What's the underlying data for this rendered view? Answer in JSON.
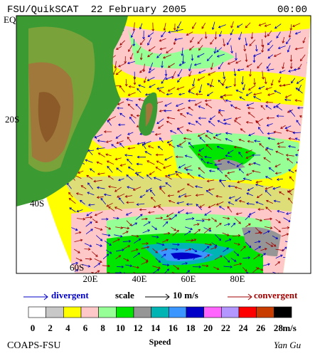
{
  "header": {
    "title": "FSU/QuikSCAT  22 February 2005",
    "time": "00:00"
  },
  "axes": {
    "lat_labels": [
      "EQ",
      "20S",
      "40S",
      "60S"
    ],
    "lon_labels": [
      "20E",
      "40E",
      "60E",
      "80E"
    ]
  },
  "legend": {
    "divergent": "divergent",
    "scale": "scale",
    "scale_value": "10 m/s",
    "convergent": "convergent"
  },
  "colorbar": {
    "title": "Speed",
    "unit": "m/s",
    "ticks": [
      0,
      2,
      4,
      6,
      8,
      10,
      12,
      14,
      16,
      18,
      20,
      22,
      24,
      26,
      28
    ],
    "colors": [
      "#ffffff",
      "#c8c8c8",
      "#ffff00",
      "#ffc8c8",
      "#96ff96",
      "#00e600",
      "#969696",
      "#00b4b4",
      "#3c96ff",
      "#0000c8",
      "#ff64ff",
      "#b496ff",
      "#ff0000",
      "#c83c00",
      "#000000"
    ]
  },
  "footer": {
    "left": "COAPS-FSU",
    "right": "Yan Gu"
  }
}
